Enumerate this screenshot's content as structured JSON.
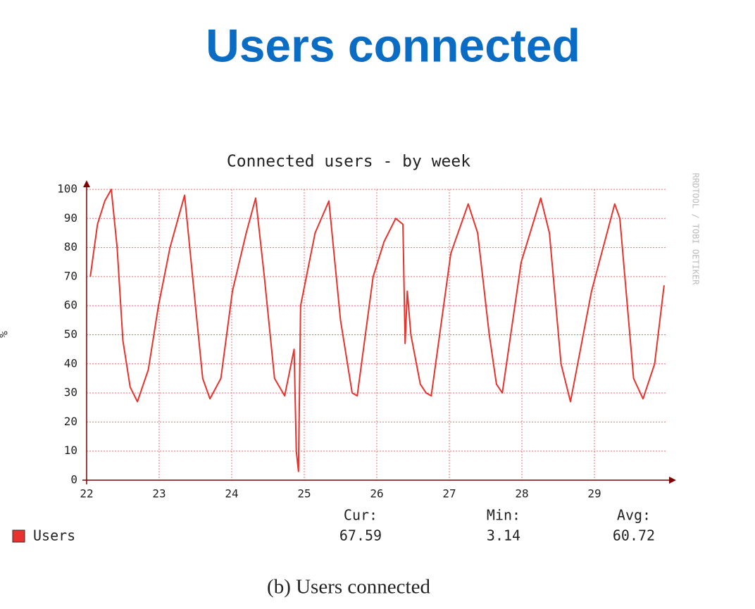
{
  "slide_title": "Users connected",
  "caption": "(b) Users connected",
  "chart_data": {
    "type": "line",
    "title": "Connected users - by week",
    "y_label": "%",
    "watermark": "RRDTOOL / TOBI OETIKER",
    "x": [
      22.05,
      22.15,
      22.25,
      22.34,
      22.42,
      22.5,
      22.6,
      22.7,
      22.85,
      22.99,
      23.15,
      23.35,
      23.5,
      23.6,
      23.7,
      23.85,
      24.01,
      24.2,
      24.33,
      24.45,
      24.59,
      24.73,
      24.86,
      24.89,
      24.92,
      24.95,
      25.15,
      25.34,
      25.5,
      25.66,
      25.73,
      25.95,
      26.1,
      26.26,
      26.36,
      26.39,
      26.42,
      26.47,
      26.6,
      26.68,
      26.75,
      27.02,
      27.26,
      27.39,
      27.55,
      27.65,
      27.73,
      27.99,
      28.26,
      28.38,
      28.54,
      28.67,
      28.96,
      29.28,
      29.35,
      29.54,
      29.67,
      29.83,
      29.96
    ],
    "series": [
      {
        "name": "Users",
        "color": "#e8322d",
        "values": [
          70,
          88,
          96,
          100,
          80,
          48,
          32,
          27,
          38,
          60,
          80,
          98,
          60,
          35,
          28,
          35,
          65,
          85,
          97,
          70,
          35,
          29,
          45,
          10,
          3,
          60,
          85,
          96,
          55,
          30,
          29,
          70,
          82,
          90,
          88,
          47,
          65,
          50,
          33,
          30,
          29,
          78,
          95,
          85,
          50,
          33,
          30,
          75,
          97,
          85,
          40,
          27,
          65,
          95,
          90,
          35,
          28,
          40,
          67
        ]
      }
    ],
    "xlim": [
      22,
      30
    ],
    "xticks": [
      22,
      23,
      24,
      25,
      26,
      27,
      28,
      29
    ],
    "ylim": [
      0,
      100
    ],
    "yticks": [
      0,
      10,
      20,
      30,
      40,
      50,
      60,
      70,
      80,
      90,
      100
    ],
    "grid": true,
    "stats": [
      {
        "label": "Cur:",
        "value": 67.59
      },
      {
        "label": "Min:",
        "value": 3.14
      },
      {
        "label": "Avg:",
        "value": 60.72
      }
    ]
  }
}
